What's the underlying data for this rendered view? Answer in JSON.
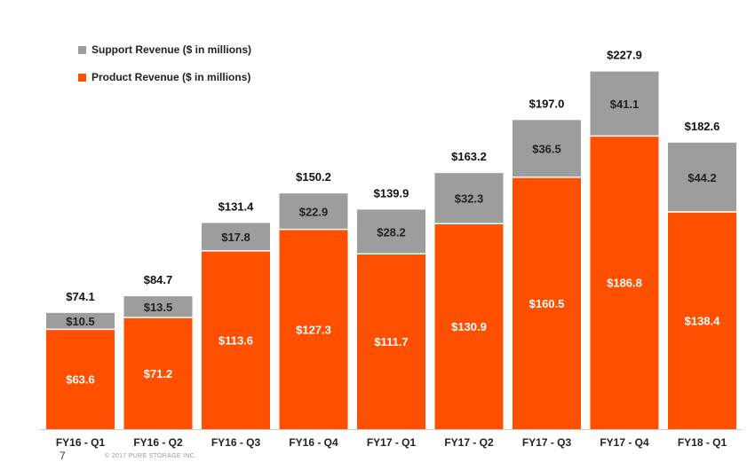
{
  "chart_data": {
    "type": "bar",
    "stacked": true,
    "categories": [
      "FY16 - Q1",
      "FY16 - Q2",
      "FY16 - Q3",
      "FY16 - Q4",
      "FY17 - Q1",
      "FY17 - Q2",
      "FY17 - Q3",
      "FY17 - Q4",
      "FY18 - Q1"
    ],
    "series": [
      {
        "name": "Product Revenue ($ in millions)",
        "color": "#fe5000",
        "values": [
          63.6,
          71.2,
          113.6,
          127.3,
          111.7,
          130.9,
          160.5,
          186.8,
          138.4
        ],
        "labels": [
          "$63.6",
          "$71.2",
          "$113.6",
          "$127.3",
          "$111.7",
          "$130.9",
          "$160.5",
          "$186.8",
          "$138.4"
        ]
      },
      {
        "name": "Support Revenue ($ in millions)",
        "color": "#9d9d9d",
        "values": [
          10.5,
          13.5,
          17.8,
          22.9,
          28.2,
          32.3,
          36.5,
          41.1,
          44.2
        ],
        "labels": [
          "$10.5",
          "$13.5",
          "$17.8",
          "$22.9",
          "$28.2",
          "$32.3",
          "$36.5",
          "$41.1",
          "$44.2"
        ]
      }
    ],
    "totals": [
      74.1,
      84.7,
      131.4,
      150.2,
      139.9,
      163.2,
      197.0,
      227.9,
      182.6
    ],
    "total_labels": [
      "$74.1",
      "$84.7",
      "$131.4",
      "$150.2",
      "$139.9",
      "$163.2",
      "$197.0",
      "$227.9",
      "$182.6"
    ],
    "title": "",
    "xlabel": "",
    "ylabel": "",
    "ylim": [
      0,
      240
    ],
    "grid": false,
    "legend_position": "top-left"
  },
  "legend": [
    {
      "label": "Support Revenue ($ in millions)",
      "color": "#9d9d9d"
    },
    {
      "label": "Product Revenue ($ in millions)",
      "color": "#fe5000"
    }
  ],
  "footer": {
    "page_number": "7",
    "note": "© 2017 PURE STORAGE INC."
  }
}
